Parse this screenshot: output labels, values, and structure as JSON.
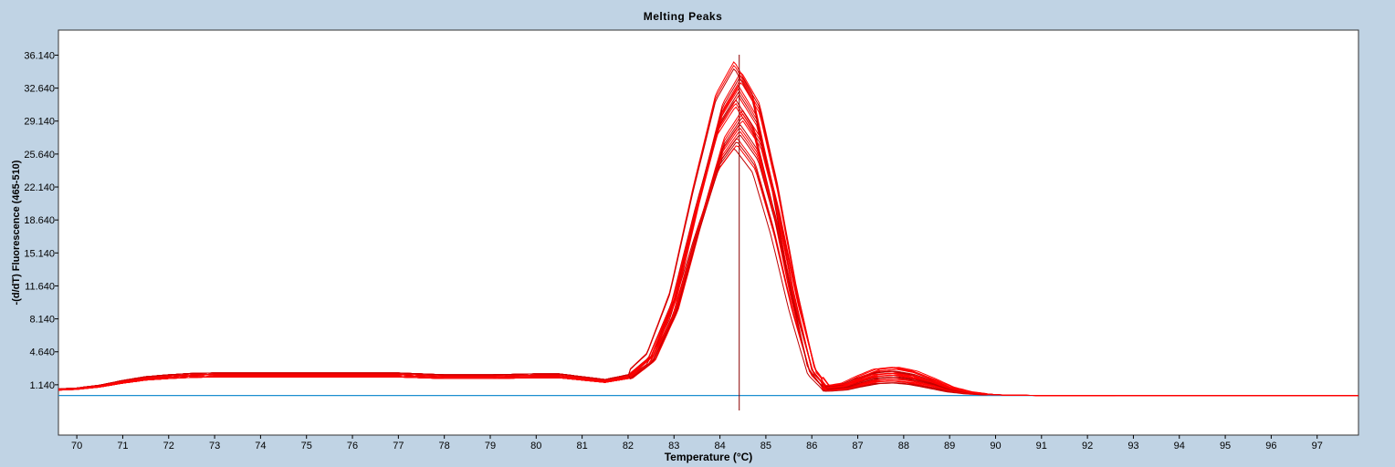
{
  "chart_data": {
    "type": "line",
    "title": "Melting Peaks",
    "xlabel": "Temperature (°C)",
    "ylabel": "-(d/dT) Fluorescence (465-510)",
    "xlim": [
      69.6,
      97.9
    ],
    "ylim": [
      -4.2,
      38.8
    ],
    "x_ticks": [
      "70",
      "71",
      "72",
      "73",
      "74",
      "75",
      "76",
      "77",
      "78",
      "79",
      "80",
      "81",
      "82",
      "83",
      "84",
      "85",
      "86",
      "87",
      "88",
      "89",
      "90",
      "91",
      "92",
      "93",
      "94",
      "95",
      "96",
      "97"
    ],
    "y_ticks": [
      "1.140",
      "4.640",
      "8.140",
      "11.640",
      "15.140",
      "18.640",
      "22.140",
      "25.640",
      "29.140",
      "32.640",
      "36.140"
    ],
    "cursor_x": 84.42,
    "colors": {
      "samples": "#ff0000",
      "samples_dark": "#c00000",
      "control": "#1c8fd0",
      "cursor": "#8b0000"
    },
    "control_series": {
      "name": "",
      "x": [
        69.6,
        97.9
      ],
      "y": [
        0.0,
        0.0
      ]
    },
    "sample_envelope": {
      "x": [
        69.6,
        70.0,
        70.5,
        71.0,
        71.5,
        72.0,
        72.5,
        73.0,
        74.0,
        75.0,
        76.0,
        77.0,
        78.0,
        79.0,
        80.0,
        80.5,
        81.0,
        81.5,
        82.0,
        82.5,
        83.0,
        83.5,
        84.0,
        84.4,
        84.8,
        85.2,
        85.6,
        86.0,
        86.3,
        86.7,
        87.0,
        87.4,
        87.8,
        88.2,
        88.6,
        89.0,
        89.4,
        89.8,
        90.2,
        91.0,
        92.0,
        93.0,
        94.0,
        95.0,
        96.0,
        97.0,
        97.9
      ],
      "peak": [
        0.7,
        0.8,
        1.1,
        1.6,
        2.0,
        2.2,
        2.35,
        2.4,
        2.4,
        2.4,
        2.4,
        2.4,
        2.2,
        2.2,
        2.3,
        2.3,
        2.0,
        1.7,
        2.2,
        4.5,
        11.0,
        22.0,
        32.0,
        35.5,
        32.0,
        23.0,
        12.0,
        3.0,
        1.0,
        1.3,
        2.0,
        2.8,
        3.0,
        2.6,
        1.8,
        0.9,
        0.4,
        0.15,
        0.05,
        0.0,
        0.0,
        0.0,
        0.0,
        0.0,
        0.0,
        0.0,
        0.0
      ],
      "ends_at_x": [
        89.8,
        92.6,
        97.9
      ],
      "count": 26
    }
  }
}
